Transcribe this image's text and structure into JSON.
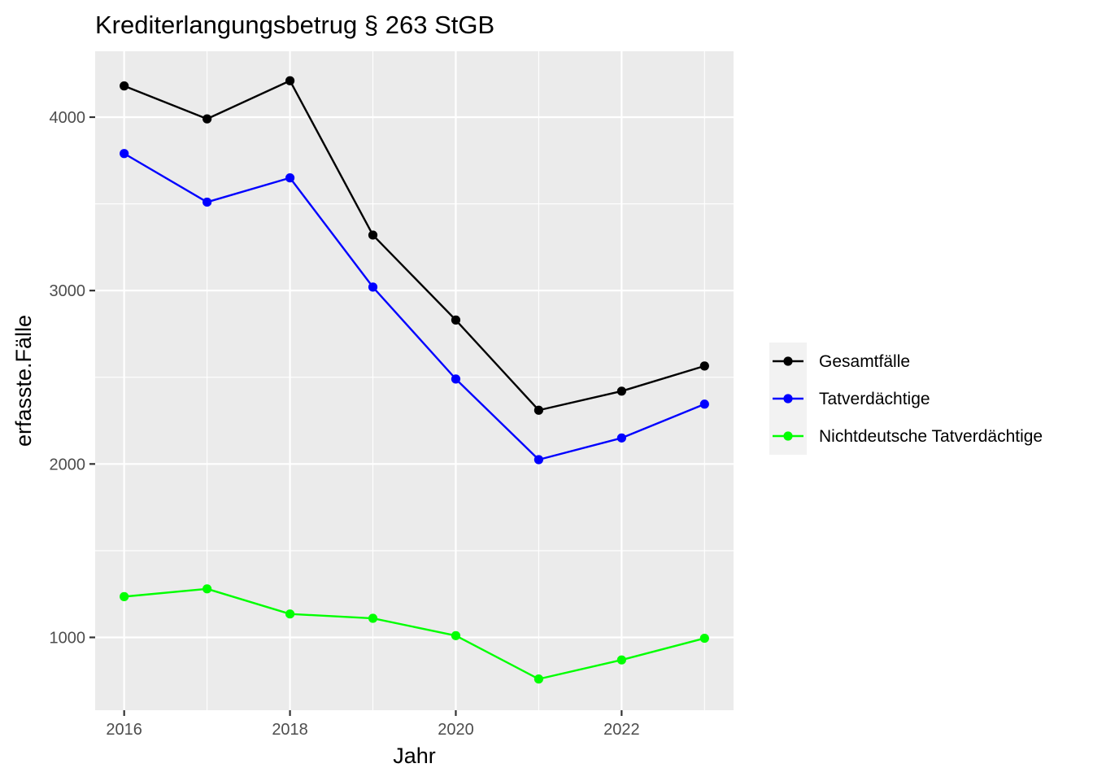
{
  "chart_data": {
    "type": "line",
    "title": "Krediterlangungsbetrug § 263 StGB",
    "xlabel": "Jahr",
    "ylabel": "erfasste.Fälle",
    "x": [
      2016,
      2017,
      2018,
      2019,
      2020,
      2021,
      2022,
      2023
    ],
    "xlim": [
      2015.65,
      2023.35
    ],
    "ylim": [
      580,
      4380
    ],
    "x_ticks": [
      2016,
      2018,
      2020,
      2022
    ],
    "y_ticks": [
      1000,
      2000,
      3000,
      4000
    ],
    "x_tick_labels": [
      "2016",
      "2018",
      "2020",
      "2022"
    ],
    "y_tick_labels": [
      "1000",
      "2000",
      "3000",
      "4000"
    ],
    "grid": true,
    "legend_position": "right",
    "series": [
      {
        "name": "Gesamtfälle",
        "color": "#000000",
        "values": [
          4180,
          3990,
          4210,
          3320,
          2830,
          2310,
          2420,
          2565
        ]
      },
      {
        "name": "Tatverdächtige",
        "color": "#0000ff",
        "values": [
          3790,
          3510,
          3650,
          3020,
          2490,
          2025,
          2150,
          2345
        ]
      },
      {
        "name": "Nichtdeutsche Tatverdächtige",
        "color": "#00ff00",
        "values": [
          1235,
          1280,
          1135,
          1110,
          1010,
          760,
          870,
          995
        ]
      }
    ]
  }
}
